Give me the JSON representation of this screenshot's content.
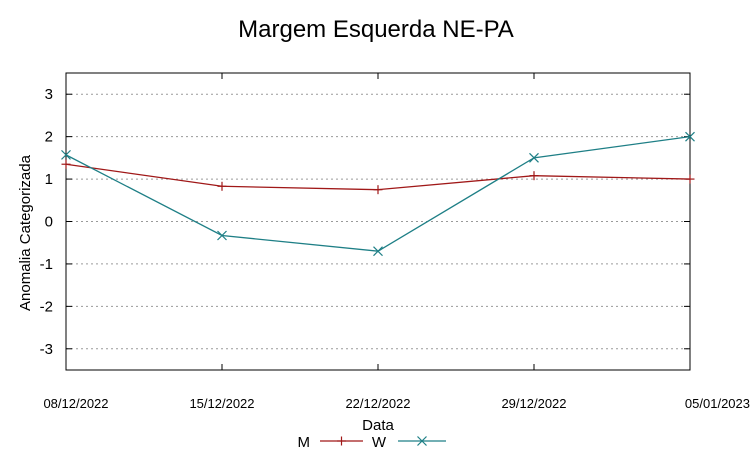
{
  "chart_data": {
    "type": "line",
    "title": "Margem Esquerda NE-PA",
    "xlabel": "Data",
    "ylabel": "Anomalia Categorizada",
    "categories": [
      "08/12/2022",
      "15/12/2022",
      "22/12/2022",
      "29/12/2022",
      "05/01/2023"
    ],
    "x_tick_labels": [
      "08/12/2022",
      "15/12/2022",
      "22/12/2022",
      "29/12/2022",
      "05/01/2023"
    ],
    "y_ticks": [
      3,
      2,
      1,
      0,
      -1,
      -2,
      -3
    ],
    "y_tick_labels": [
      "3",
      "2",
      "1",
      "0",
      "-1",
      "-2",
      "-3"
    ],
    "ylim": [
      -3.5,
      3.5
    ],
    "grid": true,
    "legend_position": "bottom-center",
    "series": [
      {
        "name": "M",
        "color": "#a01818",
        "marker": "plus",
        "values": [
          1.35,
          0.83,
          0.75,
          1.08,
          1.0
        ]
      },
      {
        "name": "W",
        "color": "#1e7f86",
        "marker": "cross",
        "values": [
          1.57,
          -0.33,
          -0.7,
          1.5,
          2.0
        ]
      }
    ]
  }
}
